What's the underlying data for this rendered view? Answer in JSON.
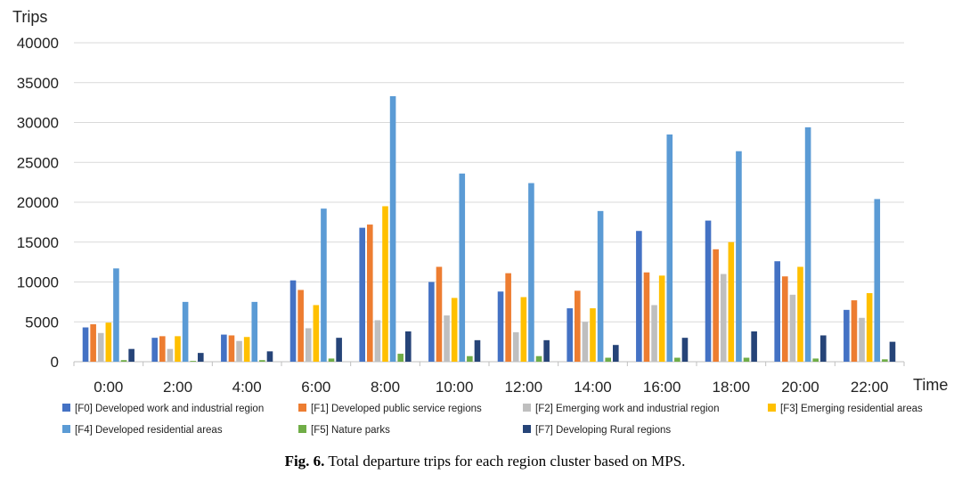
{
  "chart_data": {
    "type": "bar",
    "ylabel": "Trips",
    "xlabel": "Time",
    "ylim": [
      0,
      40000
    ],
    "yticks": [
      0,
      5000,
      10000,
      15000,
      20000,
      25000,
      30000,
      35000,
      40000
    ],
    "grid": true,
    "legend_position": "bottom",
    "categories": [
      "0:00",
      "2:00",
      "4:00",
      "6:00",
      "8:00",
      "10:00",
      "12:00",
      "14:00",
      "16:00",
      "18:00",
      "20:00",
      "22:00"
    ],
    "series": [
      {
        "name": "[F0] Developed work and industrial region",
        "color": "#4472c4",
        "values": [
          4300,
          3000,
          3400,
          10200,
          16800,
          10000,
          8800,
          6700,
          16400,
          17700,
          12600,
          6500
        ]
      },
      {
        "name": "[F1] Developed public service regions",
        "color": "#ed7d31",
        "values": [
          4700,
          3200,
          3300,
          9000,
          17200,
          11900,
          11100,
          8900,
          11200,
          14100,
          10700,
          7700
        ]
      },
      {
        "name": "[F2] Emerging work and industrial region",
        "color": "#bfbfbf",
        "values": [
          3600,
          1600,
          2600,
          4200,
          5200,
          5800,
          3700,
          5000,
          7100,
          11000,
          8400,
          5500
        ]
      },
      {
        "name": "[F3] Emerging residential areas",
        "color": "#ffc000",
        "values": [
          4900,
          3200,
          3100,
          7100,
          19500,
          8000,
          8100,
          6700,
          10800,
          15000,
          11900,
          8600
        ]
      },
      {
        "name": "[F4] Developed residential areas",
        "color": "#5b9bd5",
        "values": [
          11700,
          7500,
          7500,
          19200,
          33300,
          23600,
          22400,
          18900,
          28500,
          26400,
          29400,
          20400
        ]
      },
      {
        "name": "[F5] Nature parks",
        "color": "#70ad47",
        "values": [
          200,
          100,
          200,
          400,
          1000,
          700,
          700,
          500,
          500,
          500,
          400,
          300
        ]
      },
      {
        "name": "[F7] Developing Rural regions",
        "color": "#264478",
        "values": [
          1600,
          1100,
          1300,
          3000,
          3800,
          2700,
          2700,
          2100,
          3000,
          3800,
          3300,
          2500
        ]
      }
    ]
  },
  "caption": {
    "label": "Fig. 6.",
    "text": " Total departure trips for each region cluster based on MPS."
  }
}
